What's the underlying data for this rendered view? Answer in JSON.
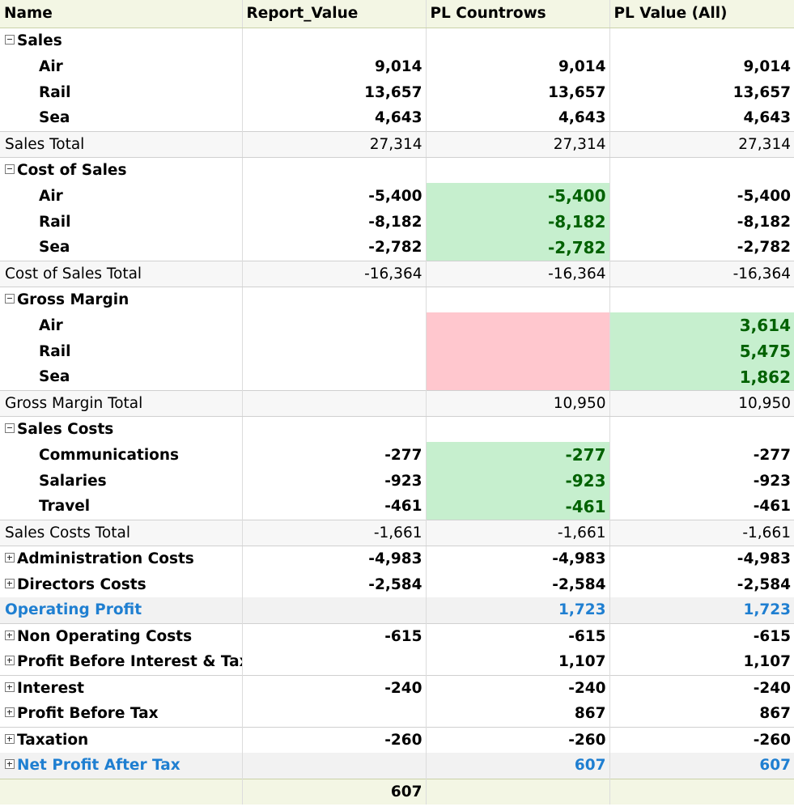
{
  "columns": [
    "Name",
    "Report_Value",
    "PL Countrows",
    "PL Value (All)"
  ],
  "sales": {
    "label": "Sales",
    "rows": [
      {
        "name": "Air",
        "v1": "9,014",
        "v2": "9,014",
        "v3": "9,014"
      },
      {
        "name": "Rail",
        "v1": "13,657",
        "v2": "13,657",
        "v3": "13,657"
      },
      {
        "name": "Sea",
        "v1": "4,643",
        "v2": "4,643",
        "v3": "4,643"
      }
    ],
    "total": {
      "name": "Sales Total",
      "v1": "27,314",
      "v2": "27,314",
      "v3": "27,314"
    }
  },
  "cost_of_sales": {
    "label": "Cost of Sales",
    "rows": [
      {
        "name": "Air",
        "v1": "-5,400",
        "v2": "-5,400",
        "v3": "-5,400"
      },
      {
        "name": "Rail",
        "v1": "-8,182",
        "v2": "-8,182",
        "v3": "-8,182"
      },
      {
        "name": "Sea",
        "v1": "-2,782",
        "v2": "-2,782",
        "v3": "-2,782"
      }
    ],
    "total": {
      "name": "Cost of Sales Total",
      "v1": "-16,364",
      "v2": "-16,364",
      "v3": "-16,364"
    }
  },
  "gross_margin": {
    "label": "Gross Margin",
    "rows": [
      {
        "name": "Air",
        "v1": "",
        "v2": "",
        "v3": "3,614"
      },
      {
        "name": "Rail",
        "v1": "",
        "v2": "",
        "v3": "5,475"
      },
      {
        "name": "Sea",
        "v1": "",
        "v2": "",
        "v3": "1,862"
      }
    ],
    "total": {
      "name": "Gross Margin Total",
      "v1": "",
      "v2": "10,950",
      "v3": "10,950"
    }
  },
  "sales_costs": {
    "label": "Sales Costs",
    "rows": [
      {
        "name": "Communications",
        "v1": "-277",
        "v2": "-277",
        "v3": "-277"
      },
      {
        "name": "Salaries",
        "v1": "-923",
        "v2": "-923",
        "v3": "-923"
      },
      {
        "name": "Travel",
        "v1": "-461",
        "v2": "-461",
        "v3": "-461"
      }
    ],
    "total": {
      "name": "Sales Costs Total",
      "v1": "-1,661",
      "v2": "-1,661",
      "v3": "-1,661"
    }
  },
  "collapsed": [
    {
      "name": "Administration Costs",
      "v1": "-4,983",
      "v2": "-4,983",
      "v3": "-4,983"
    },
    {
      "name": "Directors Costs",
      "v1": "-2,584",
      "v2": "-2,584",
      "v3": "-2,584"
    },
    {
      "name": "Operating Profit",
      "v1": "",
      "v2": "1,723",
      "v3": "1,723"
    },
    {
      "name": "Non Operating Costs",
      "v1": "-615",
      "v2": "-615",
      "v3": "-615"
    },
    {
      "name": "Profit Before Interest & Tax",
      "v1": "",
      "v2": "1,107",
      "v3": "1,107"
    },
    {
      "name": "Interest",
      "v1": "-240",
      "v2": "-240",
      "v3": "-240"
    },
    {
      "name": "Profit Before Tax",
      "v1": "",
      "v2": "867",
      "v3": "867"
    },
    {
      "name": "Taxation",
      "v1": "-260",
      "v2": "-260",
      "v3": "-260"
    },
    {
      "name": "Net Profit After Tax",
      "v1": "",
      "v2": "607",
      "v3": "607"
    }
  ],
  "grand_total": {
    "v1": "607",
    "v2": "",
    "v3": ""
  },
  "colors": {
    "green_fill": "#c6efce",
    "green_text": "#006100",
    "pink_fill": "#ffc7ce",
    "highlight_text": "#1f7fd1",
    "header_fill": "#f3f6e4"
  },
  "icons": {
    "expanded": "minus-box-icon",
    "collapsed": "plus-box-icon"
  }
}
